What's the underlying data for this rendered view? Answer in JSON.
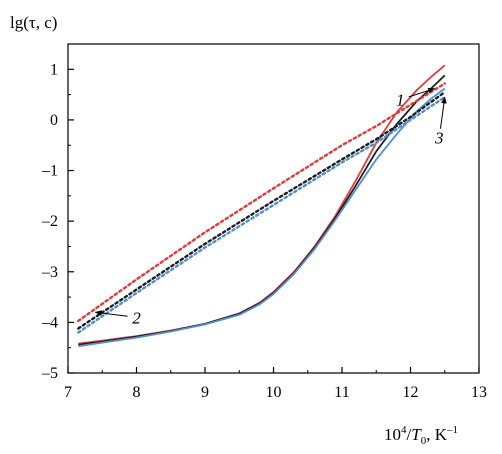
{
  "chart_data": {
    "type": "line",
    "ylabel": "lg(τ, c)",
    "xlabel_prefix": "10",
    "xlabel_sup": "4",
    "xlabel_mid": "/",
    "xlabel_var": "T",
    "xlabel_sub": "0",
    "xlabel_unit": ", K",
    "xlabel_unit_sup": "–1",
    "xlim": [
      7,
      13
    ],
    "ylim": [
      -5,
      1.5
    ],
    "xticks": [
      7,
      8,
      9,
      10,
      11,
      12,
      13
    ],
    "yticks": [
      -5,
      -4,
      -3,
      -2,
      -1,
      0,
      1
    ],
    "ytick_labels": [
      "–5",
      "–4",
      "–3",
      "–2",
      "–1",
      "0",
      "1"
    ],
    "grid": false,
    "series": [
      {
        "color": "#e53a3a",
        "style": "solid",
        "x": [
          7.15,
          7.5,
          8.0,
          8.5,
          9.0,
          9.5,
          9.8,
          10.0,
          10.3,
          10.6,
          10.9,
          11.2,
          11.5,
          11.8,
          12.1,
          12.3,
          12.5
        ],
        "y": [
          -4.42,
          -4.36,
          -4.27,
          -4.16,
          -4.03,
          -3.82,
          -3.61,
          -3.4,
          -3.0,
          -2.5,
          -1.9,
          -1.2,
          -0.45,
          0.15,
          0.6,
          0.85,
          1.08
        ]
      },
      {
        "color": "#1e1e1e",
        "style": "solid",
        "x": [
          7.15,
          7.5,
          8.0,
          8.5,
          9.0,
          9.5,
          9.8,
          10.0,
          10.3,
          10.6,
          10.9,
          11.2,
          11.5,
          11.8,
          12.1,
          12.3,
          12.5
        ],
        "y": [
          -4.44,
          -4.38,
          -4.28,
          -4.17,
          -4.03,
          -3.83,
          -3.62,
          -3.42,
          -3.02,
          -2.52,
          -1.94,
          -1.3,
          -0.62,
          -0.08,
          0.38,
          0.62,
          0.88
        ]
      },
      {
        "color": "#4d8fd6",
        "style": "solid",
        "x": [
          7.15,
          7.5,
          8.0,
          8.5,
          9.0,
          9.5,
          9.8,
          10.0,
          10.3,
          10.6,
          10.9,
          11.2,
          11.5,
          11.8,
          12.1,
          12.3,
          12.5
        ],
        "y": [
          -4.47,
          -4.4,
          -4.3,
          -4.18,
          -4.04,
          -3.85,
          -3.64,
          -3.44,
          -3.04,
          -2.55,
          -1.98,
          -1.38,
          -0.78,
          -0.28,
          0.18,
          0.42,
          0.62
        ]
      },
      {
        "color": "#e53a3a",
        "style": "dotted",
        "x": [
          7.15,
          8.0,
          9.0,
          10.0,
          11.0,
          11.5,
          12.0,
          12.5
        ],
        "y": [
          -3.97,
          -3.15,
          -2.22,
          -1.35,
          -0.5,
          -0.12,
          0.3,
          0.72
        ]
      },
      {
        "color": "#1e1e1e",
        "style": "dotted",
        "x": [
          7.15,
          8.0,
          9.0,
          10.0,
          11.0,
          11.5,
          12.0,
          12.5
        ],
        "y": [
          -4.12,
          -3.35,
          -2.45,
          -1.6,
          -0.78,
          -0.38,
          0.06,
          0.55
        ]
      },
      {
        "color": "#4d8fd6",
        "style": "dotted",
        "x": [
          7.15,
          8.0,
          9.0,
          10.0,
          11.0,
          11.5,
          12.0,
          12.5
        ],
        "y": [
          -4.2,
          -3.42,
          -2.52,
          -1.68,
          -0.84,
          -0.45,
          0.0,
          0.45
        ]
      }
    ],
    "annotations": [
      {
        "text": "1",
        "label_x": 11.85,
        "label_y": 0.4,
        "arrow_to_x": 12.35,
        "arrow_to_y": 0.62
      },
      {
        "text": "3",
        "label_x": 12.42,
        "label_y": -0.35,
        "arrow_to_x": 12.5,
        "arrow_to_y": 0.45
      },
      {
        "text": "2",
        "label_x": 8.0,
        "label_y": -3.9,
        "arrow_to_x": 7.4,
        "arrow_to_y": -3.8
      }
    ]
  }
}
